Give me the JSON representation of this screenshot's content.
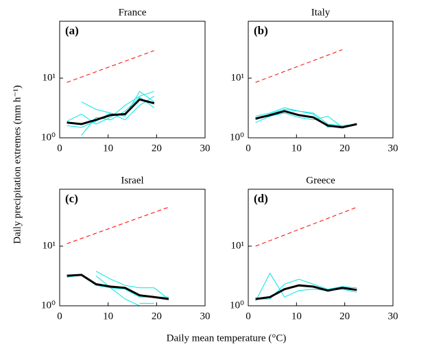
{
  "figure": {
    "xlabel": "Daily mean temperature (°C)",
    "ylabel": "Daily precipitation extremes (mm h⁻¹)"
  },
  "chart_data": [
    {
      "type": "line",
      "title": "France",
      "panel_label": "(a)",
      "yscale": "log",
      "xlim": [
        0,
        30
      ],
      "ylim": [
        1,
        90
      ],
      "xticks": [
        0,
        10,
        20,
        30
      ],
      "yticks": [
        {
          "value": 1,
          "label": "10⁰"
        },
        {
          "value": 10,
          "label": "10¹"
        }
      ],
      "x": [
        1.5,
        4.5,
        7.5,
        10.5,
        13.5,
        16.5,
        19.5
      ],
      "series": [
        {
          "color": "#00e5e5",
          "values": [
            1.6,
            1.5,
            1.9,
            2.6,
            2.3,
            6.0,
            4.0
          ]
        },
        {
          "color": "#00e5e5",
          "values": [
            1.9,
            2.5,
            1.7,
            2.2,
            3.5,
            5.0,
            6.0
          ]
        },
        {
          "color": "#00e5e5",
          "values": [
            null,
            4.0,
            3.0,
            2.6,
            2.0,
            3.5,
            5.0
          ]
        },
        {
          "color": "#00e5e5",
          "values": [
            null,
            1.1,
            2.2,
            2.0,
            2.8,
            4.8,
            3.2
          ]
        },
        {
          "color": "#000000",
          "values": [
            1.8,
            1.7,
            2.0,
            2.4,
            2.5,
            4.4,
            3.8
          ]
        },
        {
          "color": "#ff0000",
          "linestyle": "dashed",
          "x": [
            1.5,
            19.5
          ],
          "values": [
            8.5,
            29
          ]
        }
      ]
    },
    {
      "type": "line",
      "title": "Italy",
      "panel_label": "(b)",
      "yscale": "log",
      "xlim": [
        0,
        30
      ],
      "ylim": [
        1,
        90
      ],
      "xticks": [
        0,
        10,
        20,
        30
      ],
      "yticks": [
        {
          "value": 1,
          "label": "10⁰"
        },
        {
          "value": 10,
          "label": "10¹"
        }
      ],
      "x": [
        1.5,
        4.5,
        7.5,
        10.5,
        13.5,
        16.5,
        19.5,
        22.5
      ],
      "series": [
        {
          "color": "#00e5e5",
          "values": [
            2.3,
            2.6,
            3.2,
            2.8,
            2.6,
            1.7,
            1.6,
            1.7
          ]
        },
        {
          "color": "#00e5e5",
          "values": [
            1.8,
            2.3,
            2.6,
            2.2,
            2.0,
            2.3,
            1.5,
            null
          ]
        },
        {
          "color": "#00e5e5",
          "values": [
            2.0,
            2.5,
            3.0,
            2.8,
            2.5,
            1.5,
            1.6,
            null
          ]
        },
        {
          "color": "#000000",
          "values": [
            2.1,
            2.4,
            2.8,
            2.4,
            2.2,
            1.6,
            1.5,
            1.7
          ]
        },
        {
          "color": "#ff0000",
          "linestyle": "dashed",
          "x": [
            1.5,
            19.5
          ],
          "values": [
            8.5,
            30
          ]
        }
      ]
    },
    {
      "type": "line",
      "title": "Israel",
      "panel_label": "(c)",
      "yscale": "log",
      "xlim": [
        0,
        30
      ],
      "ylim": [
        1,
        90
      ],
      "xticks": [
        0,
        10,
        20,
        30
      ],
      "yticks": [
        {
          "value": 1,
          "label": "10⁰"
        },
        {
          "value": 10,
          "label": "10¹"
        }
      ],
      "x": [
        1.5,
        4.5,
        7.5,
        10.5,
        13.5,
        16.5,
        19.5,
        22.5
      ],
      "series": [
        {
          "color": "#00e5e5",
          "values": [
            3.0,
            3.3,
            2.2,
            2.0,
            1.9,
            1.4,
            1.4,
            1.4
          ]
        },
        {
          "color": "#00e5e5",
          "values": [
            null,
            null,
            3.8,
            2.8,
            2.2,
            2.0,
            2.0,
            1.3
          ]
        },
        {
          "color": "#00e5e5",
          "values": [
            null,
            null,
            3.2,
            2.0,
            1.3,
            1.0,
            null,
            null
          ]
        },
        {
          "color": "#00e5e5",
          "values": [
            null,
            null,
            null,
            null,
            null,
            1.1,
            1.1,
            null
          ]
        },
        {
          "color": "#000000",
          "values": [
            3.2,
            3.3,
            2.3,
            2.1,
            2.0,
            1.5,
            1.4,
            1.3
          ]
        },
        {
          "color": "#ff0000",
          "linestyle": "dashed",
          "x": [
            1.5,
            22.5
          ],
          "values": [
            11,
            45
          ]
        }
      ]
    },
    {
      "type": "line",
      "title": "Greece",
      "panel_label": "(d)",
      "yscale": "log",
      "xlim": [
        0,
        30
      ],
      "ylim": [
        1,
        90
      ],
      "xticks": [
        0,
        10,
        20,
        30
      ],
      "yticks": [
        {
          "value": 1,
          "label": "10⁰"
        },
        {
          "value": 10,
          "label": "10¹"
        }
      ],
      "x": [
        1.5,
        4.5,
        7.5,
        10.5,
        13.5,
        16.5,
        19.5,
        22.5
      ],
      "series": [
        {
          "color": "#00e5e5",
          "values": [
            1.2,
            3.5,
            1.4,
            1.8,
            1.9,
            1.8,
            1.9,
            1.7
          ]
        },
        {
          "color": "#00e5e5",
          "values": [
            1.3,
            1.3,
            2.3,
            2.8,
            2.3,
            1.9,
            2.1,
            2.0
          ]
        },
        {
          "color": "#000000",
          "values": [
            1.3,
            1.4,
            1.9,
            2.2,
            2.1,
            1.8,
            2.0,
            1.85
          ]
        },
        {
          "color": "#ff0000",
          "linestyle": "dashed",
          "x": [
            1.5,
            22.5
          ],
          "values": [
            10,
            45
          ]
        }
      ]
    }
  ]
}
